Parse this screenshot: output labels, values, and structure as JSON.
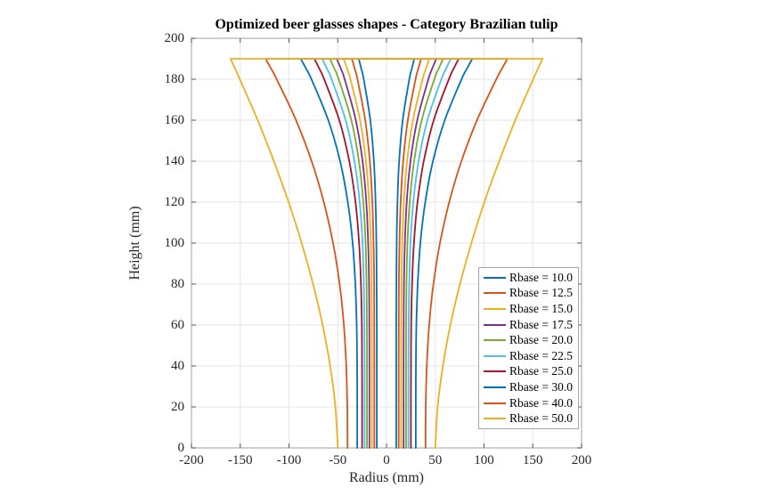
{
  "title": "Optimized beer glasses shapes - Category Brazilian tulip",
  "chart_data": {
    "type": "line",
    "title": "Optimized beer glasses shapes - Category Brazilian tulip",
    "xlabel": "Radius (mm)",
    "ylabel": "Height (mm)",
    "xlim": [
      -200,
      200
    ],
    "ylim": [
      0,
      200
    ],
    "xticks": [
      -200,
      -150,
      -100,
      -50,
      0,
      50,
      100,
      150,
      200
    ],
    "yticks": [
      0,
      20,
      40,
      60,
      80,
      100,
      120,
      140,
      160,
      180,
      200
    ],
    "grid": true,
    "grid_color": "#e6e6e6",
    "axis_box_color": "#b0b0b0",
    "tick_color": "#555555",
    "legend_position": "right-lower-inside",
    "rim_height": 190,
    "symmetry": "profiles mirrored about radius = 0; each glass closed by a horizontal rim line at height 190",
    "heights": [
      0,
      20,
      40,
      60,
      80,
      100,
      120,
      140,
      160,
      180,
      185,
      190
    ],
    "series": [
      {
        "name": "Rbase = 10.0",
        "rbase": 10.0,
        "rtop": 28.5,
        "color": "#0072BD",
        "radii": [
          10,
          10,
          10,
          10,
          10.1,
          10.4,
          11.2,
          13.0,
          16.6,
          23.4,
          25.8,
          28.5
        ]
      },
      {
        "name": "Rbase = 12.5",
        "rbase": 12.5,
        "rtop": 35.5,
        "color": "#D95319",
        "radii": [
          12.5,
          12.5,
          12.5,
          12.6,
          12.7,
          13.3,
          14.5,
          17.1,
          21.8,
          29.8,
          32.5,
          35.5
        ]
      },
      {
        "name": "Rbase = 15.0",
        "rbase": 15.0,
        "rtop": 44.0,
        "color": "#EDB120",
        "radii": [
          15,
          15,
          15,
          15.1,
          15.4,
          16.1,
          17.8,
          21.1,
          27.1,
          37.0,
          40.3,
          44.0
        ]
      },
      {
        "name": "Rbase = 17.5",
        "rbase": 17.5,
        "rtop": 51.0,
        "color": "#7E2F8E",
        "radii": [
          17.5,
          17.5,
          17.5,
          17.6,
          17.9,
          18.8,
          20.7,
          24.6,
          31.5,
          42.9,
          46.7,
          51.0
        ]
      },
      {
        "name": "Rbase = 20.0",
        "rbase": 20.0,
        "rtop": 58.0,
        "color": "#77AC30",
        "radii": [
          20,
          20,
          20,
          20.1,
          20.5,
          21.5,
          23.8,
          28.3,
          36.1,
          49.0,
          53.3,
          58.0
        ]
      },
      {
        "name": "Rbase = 22.5",
        "rbase": 22.5,
        "rtop": 66.0,
        "color": "#4DBEEE",
        "radii": [
          22.5,
          22.5,
          22.5,
          22.7,
          23.3,
          24.6,
          27.5,
          32.9,
          41.9,
          56.3,
          60.9,
          66.0
        ]
      },
      {
        "name": "Rbase = 25.0",
        "rbase": 25.0,
        "rtop": 74.0,
        "color": "#A2142F",
        "radii": [
          25,
          25,
          25.1,
          25.3,
          26.2,
          28.1,
          31.8,
          38.2,
          48.4,
          63.9,
          68.7,
          74.0
        ]
      },
      {
        "name": "Rbase = 30.0",
        "rbase": 30.0,
        "rtop": 88.0,
        "color": "#0072BD",
        "radii": [
          30,
          30,
          30.1,
          30.6,
          32.0,
          34.7,
          39.7,
          47.6,
          59.7,
          77.0,
          82.3,
          88.0
        ]
      },
      {
        "name": "Rbase = 40.0",
        "rbase": 40.0,
        "rtop": 124.0,
        "color": "#D95319",
        "radii": [
          40,
          40.2,
          41.3,
          43.7,
          48.1,
          54.8,
          64.3,
          76.8,
          92.8,
          112.6,
          118.2,
          124.0
        ]
      },
      {
        "name": "Rbase = 50.0",
        "rbase": 50.0,
        "rtop": 160.0,
        "color": "#EDB120",
        "radii": [
          50,
          52.4,
          57.8,
          65.5,
          75.3,
          87.0,
          100.4,
          115.5,
          132.1,
          150.4,
          155.1,
          160.0
        ]
      }
    ]
  }
}
